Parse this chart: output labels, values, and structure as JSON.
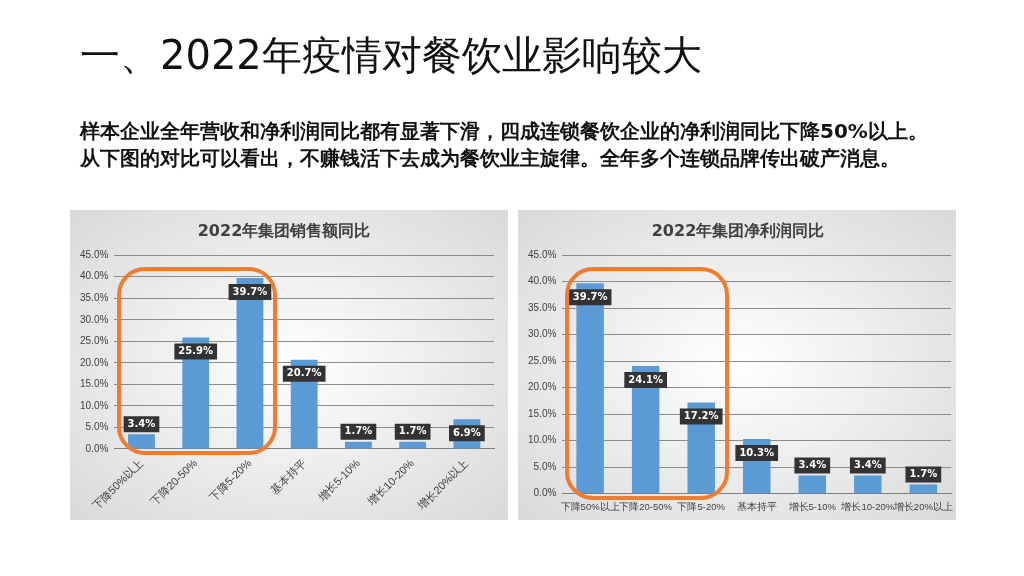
{
  "chart_data": [
    {
      "type": "other",
      "title": "一、2022年疫情对餐饮业影响较大",
      "subtitle": "样本企业全年营收和净利润同比都有显著下滑，四成连锁餐饮企业的净利润同比下降50%以上。从下图的对比可以看出，不赚钱活下去成为餐饮业主旋律。全年多个连锁品牌传出破产消息。"
    },
    {
      "type": "bar",
      "title": "2022年集团销售额同比",
      "categories": [
        "下降50%以上",
        "下降20-50%",
        "下降5-20%",
        "基本持平",
        "增长5-10%",
        "增长10-20%",
        "增长20%以上"
      ],
      "values": [
        3.4,
        25.9,
        39.7,
        20.7,
        1.7,
        1.7,
        6.9
      ],
      "value_labels": [
        "3.4%",
        "25.9%",
        "39.7%",
        "20.7%",
        "1.7%",
        "1.7%",
        "6.9%"
      ],
      "color": "#5b9bd5",
      "ylim": [
        0,
        45
      ],
      "yticks": [
        {
          "value": 0,
          "label": "0.0%"
        },
        {
          "value": 5,
          "label": "5.0%"
        },
        {
          "value": 10,
          "label": "10.0%"
        },
        {
          "value": 15,
          "label": "15.0%"
        },
        {
          "value": 20,
          "label": "20.0%"
        },
        {
          "value": 25,
          "label": "25.0%"
        },
        {
          "value": 30,
          "label": "30.0%"
        },
        {
          "value": 35,
          "label": "35.0%"
        },
        {
          "value": 40,
          "label": "40.0%"
        },
        {
          "value": 45,
          "label": "45.0%"
        }
      ],
      "grid": "y",
      "legend": false
    },
    {
      "type": "bar",
      "title": "2022年集团净利润同比",
      "categories": [
        "下降50%以上",
        "下降20-50%",
        "下降5-20%",
        "基本持平",
        "增长5-10%",
        "增长10-20%",
        "增长20%以上"
      ],
      "values": [
        39.7,
        24.1,
        17.2,
        10.3,
        3.4,
        3.4,
        1.7
      ],
      "value_labels": [
        "39.7%",
        "24.1%",
        "17.2%",
        "10.3%",
        "3.4%",
        "3.4%",
        "1.7%"
      ],
      "color": "#5b9bd5",
      "ylim": [
        0,
        45
      ],
      "yticks": [
        {
          "value": 0,
          "label": "0.0%"
        },
        {
          "value": 5,
          "label": "5.0%"
        },
        {
          "value": 10,
          "label": "10.0%"
        },
        {
          "value": 15,
          "label": "15.0%"
        },
        {
          "value": 20,
          "label": "20.0%"
        },
        {
          "value": 25,
          "label": "25.0%"
        },
        {
          "value": 30,
          "label": "30.0%"
        },
        {
          "value": 35,
          "label": "35.0%"
        },
        {
          "value": 40,
          "label": "40.0%"
        },
        {
          "value": 45,
          "label": "45.0%"
        }
      ],
      "grid": "y",
      "legend": false
    }
  ]
}
